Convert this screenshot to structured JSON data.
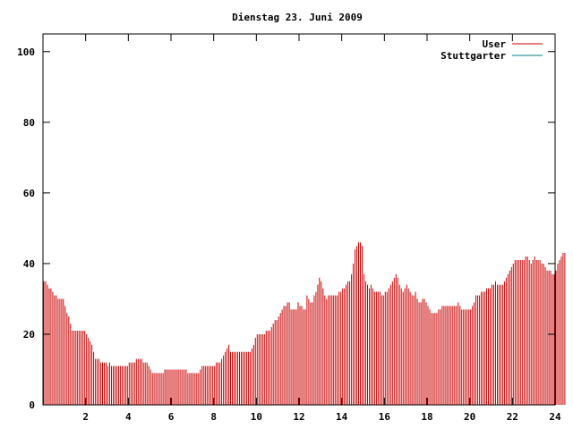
{
  "chart_data": {
    "type": "bar",
    "title": "Dienstag 23. Juni 2009",
    "xlabel": "",
    "ylabel": "",
    "xlim": [
      0,
      24
    ],
    "ylim": [
      0,
      105
    ],
    "x_ticks": [
      2,
      4,
      6,
      8,
      10,
      12,
      14,
      16,
      18,
      20,
      22,
      24
    ],
    "y_ticks": [
      0,
      20,
      40,
      60,
      80,
      100
    ],
    "grid": false,
    "legend_position": "top-right",
    "series": [
      {
        "name": "User",
        "color": "#cc0000",
        "resolution_minutes": 5,
        "values": [
          35,
          35,
          34,
          33,
          33,
          32,
          31,
          31,
          30,
          30,
          30,
          30,
          28,
          26,
          25,
          23,
          21,
          21,
          21,
          21,
          21,
          21,
          21,
          21,
          20,
          19,
          18,
          17,
          15,
          13,
          13,
          13,
          12,
          12,
          12,
          12,
          11,
          12,
          11,
          11,
          11,
          11,
          11,
          11,
          11,
          11,
          11,
          11,
          12,
          12,
          12,
          12,
          13,
          13,
          13,
          13,
          12,
          12,
          12,
          11,
          10,
          9,
          9,
          9,
          9,
          9,
          9,
          9,
          10,
          10,
          10,
          10,
          10,
          10,
          10,
          10,
          10,
          10,
          10,
          10,
          10,
          9,
          9,
          9,
          9,
          9,
          9,
          9,
          10,
          11,
          11,
          11,
          11,
          11,
          11,
          11,
          11,
          12,
          12,
          12,
          13,
          14,
          15,
          16,
          17,
          15,
          15,
          15,
          15,
          15,
          15,
          15,
          15,
          15,
          15,
          15,
          15,
          16,
          17,
          19,
          20,
          20,
          20,
          20,
          20,
          21,
          21,
          21,
          22,
          23,
          24,
          24,
          25,
          26,
          27,
          28,
          28,
          29,
          29,
          27,
          27,
          27,
          27,
          29,
          28,
          28,
          27,
          27,
          31,
          30,
          29,
          29,
          31,
          32,
          34,
          36,
          35,
          33,
          31,
          30,
          31,
          31,
          31,
          31,
          31,
          31,
          32,
          32,
          33,
          33,
          34,
          35,
          35,
          37,
          40,
          44,
          45,
          46,
          46,
          45,
          37,
          35,
          34,
          33,
          34,
          33,
          32,
          32,
          32,
          32,
          31,
          31,
          32,
          32,
          33,
          34,
          35,
          36,
          37,
          36,
          34,
          33,
          32,
          33,
          34,
          33,
          32,
          31,
          31,
          32,
          30,
          29,
          29,
          30,
          30,
          29,
          28,
          27,
          26,
          26,
          26,
          26,
          27,
          27,
          28,
          28,
          28,
          28,
          28,
          28,
          28,
          28,
          28,
          29,
          28,
          27,
          27,
          27,
          27,
          27,
          27,
          28,
          29,
          31,
          31,
          31,
          32,
          32,
          32,
          33,
          33,
          33,
          34,
          34,
          35,
          34,
          34,
          34,
          34,
          35,
          36,
          37,
          38,
          39,
          40,
          41,
          41,
          41,
          41,
          41,
          41,
          42,
          42,
          41,
          40,
          41,
          42,
          41,
          41,
          41,
          40,
          40,
          39,
          38,
          38,
          38,
          37,
          37,
          38,
          40,
          41,
          42,
          43,
          43
        ]
      },
      {
        "name": "Stuttgarter",
        "color": "#008080",
        "values": []
      }
    ]
  }
}
